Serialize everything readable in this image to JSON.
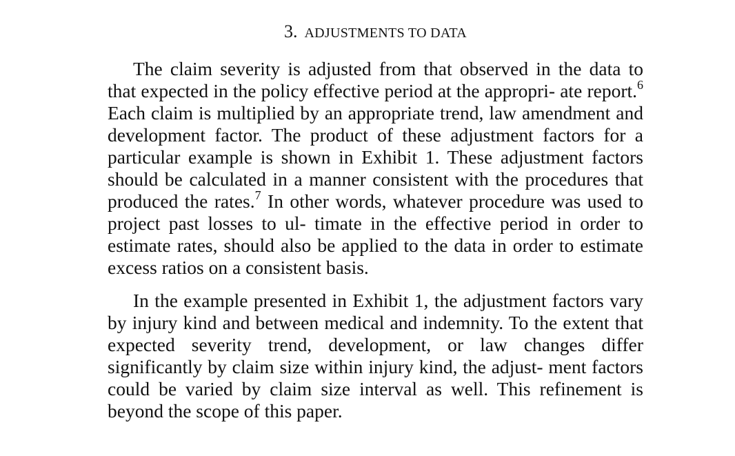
{
  "section": {
    "number": "3.",
    "title": "ADJUSTMENTS TO DATA"
  },
  "paragraphs": [
    {
      "part1": "The claim severity is adjusted from that observed in the data to that expected in the policy effective period at the appropri- ate report.",
      "footnote1": "6",
      "part2": " Each claim is multiplied by an appropriate trend, law amendment and development factor. The product of these adjustment factors for a particular example is shown in Exhibit 1. These adjustment factors should be calculated in a manner consistent with the procedures that produced the rates.",
      "footnote2": "7",
      "part3": " In other words, whatever procedure was used to project past losses to ul- timate in the effective period in order to estimate rates, should also be applied to the data in order to estimate excess ratios on a consistent basis."
    },
    {
      "text": "In the example presented in Exhibit 1, the adjustment factors vary by injury kind and between medical and indemnity. To the extent that expected severity trend, development, or law changes differ significantly by claim size within injury kind, the adjust- ment factors could be varied by claim size interval as well. This refinement is beyond the scope of this paper."
    }
  ]
}
